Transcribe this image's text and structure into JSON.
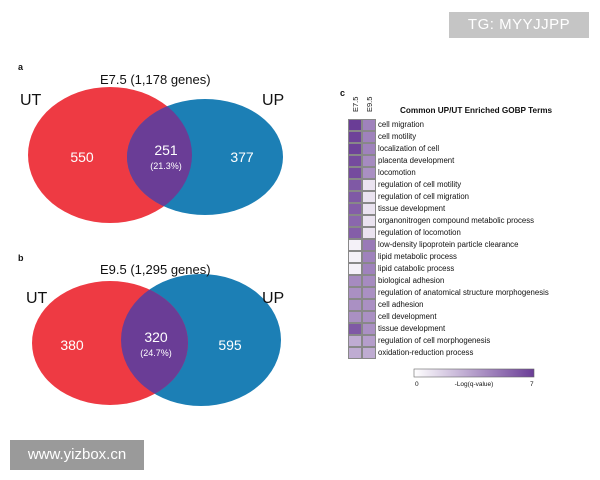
{
  "watermarks": {
    "top": "TG: MYYJJPP",
    "bottom": "www.yizbox.cn"
  },
  "colors": {
    "ut": "#ee3a43",
    "up": "#1c7fb5",
    "overlap": "#6a3d96",
    "cell_high": "#7b52b3",
    "cell_mid": "#c1aee0",
    "cell_low": "#ffffff"
  },
  "panel_a": {
    "letter": "a",
    "title": "E7.5 (1,178 genes)",
    "left_label": "UT",
    "right_label": "UP",
    "left_only": "550",
    "overlap": "251",
    "overlap_pct": "(21.3%)",
    "right_only": "377"
  },
  "panel_b": {
    "letter": "b",
    "title": "E9.5 (1,295 genes)",
    "left_label": "UT",
    "right_label": "UP",
    "left_only": "380",
    "overlap": "320",
    "overlap_pct": "(24.7%)",
    "right_only": "595"
  },
  "panel_c": {
    "letter": "c",
    "title": "Common UP/UT Enriched GOBP Terms",
    "columns": [
      "E7.5",
      "E9.5"
    ],
    "terms": [
      {
        "name": "cell migration",
        "e75": 7.0,
        "e95": 4.5
      },
      {
        "name": "cell motility",
        "e75": 6.8,
        "e95": 4.5
      },
      {
        "name": "localization of cell",
        "e75": 6.8,
        "e95": 4.5
      },
      {
        "name": "placenta development",
        "e75": 6.5,
        "e95": 4.2
      },
      {
        "name": "locomotion",
        "e75": 6.5,
        "e95": 4.0
      },
      {
        "name": "regulation of cell motility",
        "e75": 6.0,
        "e95": 1.0
      },
      {
        "name": "regulation of cell migration",
        "e75": 6.0,
        "e95": 1.0
      },
      {
        "name": "tissue development",
        "e75": 5.8,
        "e95": 1.0
      },
      {
        "name": "organonitrogen compound metabolic process",
        "e75": 5.5,
        "e95": 1.0
      },
      {
        "name": "regulation of locomotion",
        "e75": 5.8,
        "e95": 1.0
      },
      {
        "name": "low-density lipoprotein particle clearance",
        "e75": 0.5,
        "e95": 4.8
      },
      {
        "name": "lipid metabolic process",
        "e75": 0.5,
        "e95": 4.5
      },
      {
        "name": "lipid catabolic process",
        "e75": 0.5,
        "e95": 4.5
      },
      {
        "name": "biological adhesion",
        "e75": 4.2,
        "e95": 4.2
      },
      {
        "name": "regulation of anatomical structure morphogenesis",
        "e75": 4.0,
        "e95": 4.0
      },
      {
        "name": "cell adhesion",
        "e75": 4.0,
        "e95": 4.0
      },
      {
        "name": "cell development",
        "e75": 4.0,
        "e95": 4.0
      },
      {
        "name": "tissue development",
        "e75": 6.0,
        "e95": 4.0
      },
      {
        "name": "regulation of cell morphogenesis",
        "e75": 3.0,
        "e95": 3.5
      },
      {
        "name": "oxidation-reduction process",
        "e75": 3.0,
        "e95": 3.0
      }
    ],
    "legend": {
      "min": "0",
      "max": "7",
      "label": "-Log(q-value)",
      "min_value": 0,
      "max_value": 7
    }
  }
}
